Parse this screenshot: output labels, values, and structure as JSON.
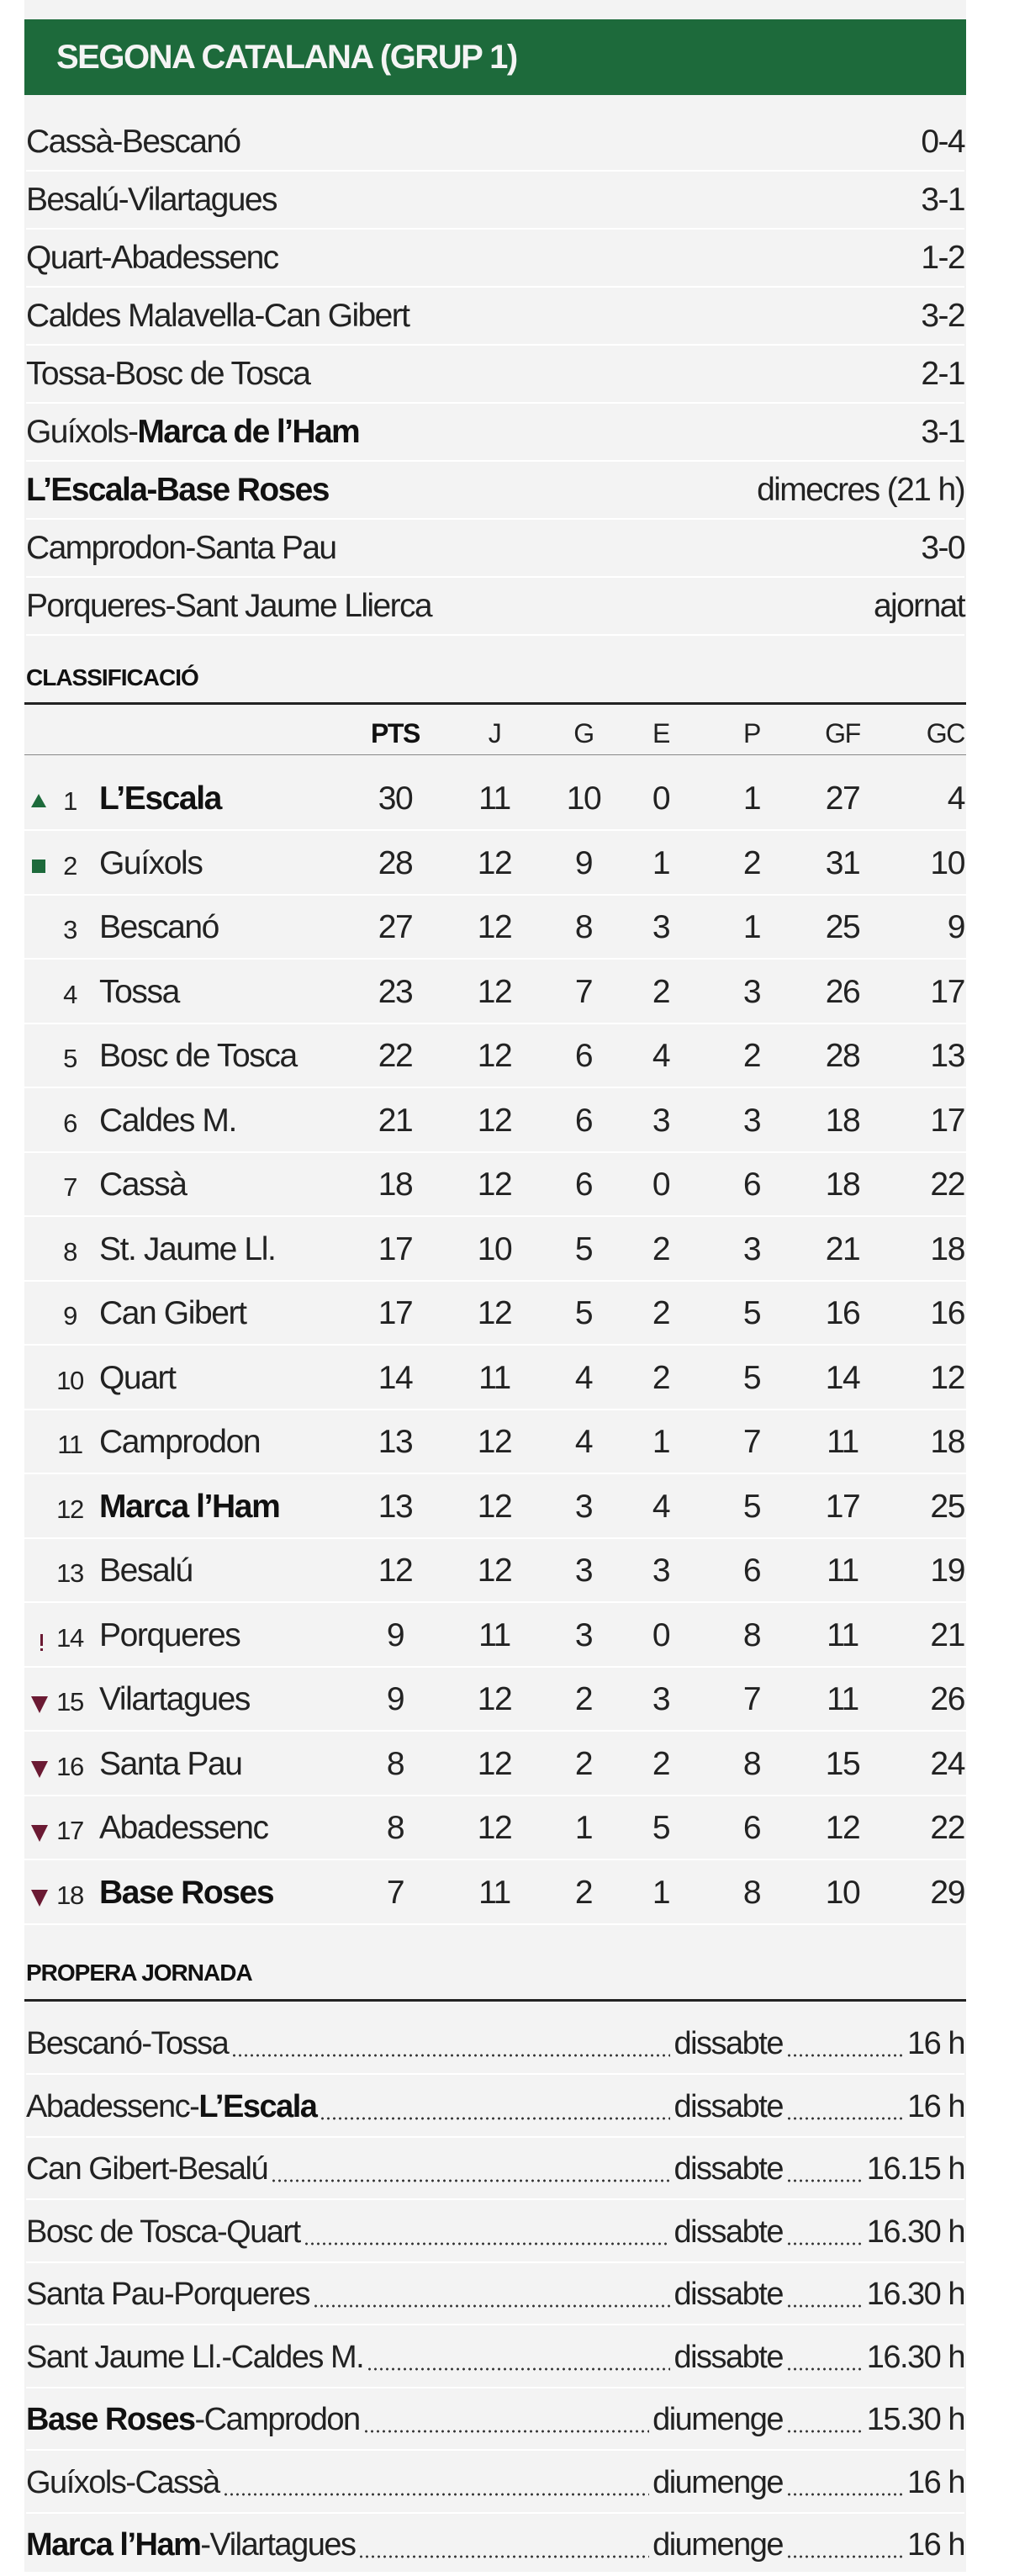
{
  "title": "SEGONA CATALANA (GRUP 1)",
  "results": [
    {
      "parts": [
        {
          "text": "Cassà-Bescanó",
          "bold": false
        }
      ],
      "score": "0-4"
    },
    {
      "parts": [
        {
          "text": "Besalú-Vilartagues",
          "bold": false
        }
      ],
      "score": "3-1"
    },
    {
      "parts": [
        {
          "text": "Quart-Abadessenc",
          "bold": false
        }
      ],
      "score": "1-2"
    },
    {
      "parts": [
        {
          "text": "Caldes Malavella-Can Gibert",
          "bold": false
        }
      ],
      "score": "3-2"
    },
    {
      "parts": [
        {
          "text": "Tossa-Bosc de Tosca",
          "bold": false
        }
      ],
      "score": "2-1"
    },
    {
      "parts": [
        {
          "text": "Guíxols-",
          "bold": false
        },
        {
          "text": "Marca de l’Ham",
          "bold": true
        }
      ],
      "score": "3-1"
    },
    {
      "parts": [
        {
          "text": "L’Escala-Base Roses",
          "bold": true
        }
      ],
      "score": "dimecres (21 h)"
    },
    {
      "parts": [
        {
          "text": "Camprodon-Santa Pau",
          "bold": false
        }
      ],
      "score": "3-0"
    },
    {
      "parts": [
        {
          "text": "Porqueres-Sant Jaume Llierca",
          "bold": false
        }
      ],
      "score": "ajornat"
    }
  ],
  "standings_title": "CLASSIFICACIÓ",
  "columns": [
    "PTS",
    "J",
    "G",
    "E",
    "P",
    "GF",
    "GC"
  ],
  "colors": {
    "header": "#1d6a3b",
    "promotion": "#1d6a3b",
    "relegation": "#6b1a33"
  },
  "standings": [
    {
      "pos": "1",
      "marker": "up-triangle",
      "team": "L’Escala",
      "bold": true,
      "stats": [
        "30",
        "11",
        "10",
        "0",
        "1",
        "27",
        "4"
      ]
    },
    {
      "pos": "2",
      "marker": "square",
      "team": "Guíxols",
      "bold": false,
      "stats": [
        "28",
        "12",
        "9",
        "1",
        "2",
        "31",
        "10"
      ]
    },
    {
      "pos": "3",
      "marker": "",
      "team": "Bescanó",
      "bold": false,
      "stats": [
        "27",
        "12",
        "8",
        "3",
        "1",
        "25",
        "9"
      ]
    },
    {
      "pos": "4",
      "marker": "",
      "team": "Tossa",
      "bold": false,
      "stats": [
        "23",
        "12",
        "7",
        "2",
        "3",
        "26",
        "17"
      ]
    },
    {
      "pos": "5",
      "marker": "",
      "team": "Bosc de Tosca",
      "bold": false,
      "stats": [
        "22",
        "12",
        "6",
        "4",
        "2",
        "28",
        "13"
      ]
    },
    {
      "pos": "6",
      "marker": "",
      "team": "Caldes M.",
      "bold": false,
      "stats": [
        "21",
        "12",
        "6",
        "3",
        "3",
        "18",
        "17"
      ]
    },
    {
      "pos": "7",
      "marker": "",
      "team": "Cassà",
      "bold": false,
      "stats": [
        "18",
        "12",
        "6",
        "0",
        "6",
        "18",
        "22"
      ]
    },
    {
      "pos": "8",
      "marker": "",
      "team": "St. Jaume Ll.",
      "bold": false,
      "stats": [
        "17",
        "10",
        "5",
        "2",
        "3",
        "21",
        "18"
      ]
    },
    {
      "pos": "9",
      "marker": "",
      "team": "Can Gibert",
      "bold": false,
      "stats": [
        "17",
        "12",
        "5",
        "2",
        "5",
        "16",
        "16"
      ]
    },
    {
      "pos": "10",
      "marker": "",
      "team": "Quart",
      "bold": false,
      "stats": [
        "14",
        "11",
        "4",
        "2",
        "5",
        "14",
        "12"
      ]
    },
    {
      "pos": "11",
      "marker": "",
      "team": "Camprodon",
      "bold": false,
      "stats": [
        "13",
        "12",
        "4",
        "1",
        "7",
        "11",
        "18"
      ]
    },
    {
      "pos": "12",
      "marker": "",
      "team": "Marca l’Ham",
      "bold": true,
      "stats": [
        "13",
        "12",
        "3",
        "4",
        "5",
        "17",
        "25"
      ]
    },
    {
      "pos": "13",
      "marker": "",
      "team": "Besalú",
      "bold": false,
      "stats": [
        "12",
        "12",
        "3",
        "3",
        "6",
        "11",
        "19"
      ]
    },
    {
      "pos": "14",
      "marker": "exclamation",
      "team": "Porqueres",
      "bold": false,
      "stats": [
        "9",
        "11",
        "3",
        "0",
        "8",
        "11",
        "21"
      ]
    },
    {
      "pos": "15",
      "marker": "down-triangle",
      "team": "Vilartagues",
      "bold": false,
      "stats": [
        "9",
        "12",
        "2",
        "3",
        "7",
        "11",
        "26"
      ]
    },
    {
      "pos": "16",
      "marker": "down-triangle",
      "team": "Santa Pau",
      "bold": false,
      "stats": [
        "8",
        "12",
        "2",
        "2",
        "8",
        "15",
        "24"
      ]
    },
    {
      "pos": "17",
      "marker": "down-triangle",
      "team": "Abadessenc",
      "bold": false,
      "stats": [
        "8",
        "12",
        "1",
        "5",
        "6",
        "12",
        "22"
      ]
    },
    {
      "pos": "18",
      "marker": "down-triangle",
      "team": "Base Roses",
      "bold": true,
      "stats": [
        "7",
        "11",
        "2",
        "1",
        "8",
        "10",
        "29"
      ]
    }
  ],
  "next_title": "PROPERA JORNADA",
  "fixtures": [
    {
      "parts": [
        {
          "text": "Bescanó-Tossa",
          "bold": false
        }
      ],
      "day": "dissabte",
      "time": "16 h"
    },
    {
      "parts": [
        {
          "text": "Abadessenc-",
          "bold": false
        },
        {
          "text": "L’Escala",
          "bold": true
        }
      ],
      "day": "dissabte",
      "time": "16 h"
    },
    {
      "parts": [
        {
          "text": "Can Gibert-Besalú",
          "bold": false
        }
      ],
      "day": "dissabte",
      "time": "16.15 h"
    },
    {
      "parts": [
        {
          "text": "Bosc de Tosca-Quart",
          "bold": false
        }
      ],
      "day": "dissabte",
      "time": "16.30 h"
    },
    {
      "parts": [
        {
          "text": "Santa Pau-Porqueres",
          "bold": false
        }
      ],
      "day": "dissabte",
      "time": "16.30 h"
    },
    {
      "parts": [
        {
          "text": "Sant Jaume Ll.-Caldes M.",
          "bold": false
        }
      ],
      "day": "dissabte",
      "time": "16.30 h"
    },
    {
      "parts": [
        {
          "text": "Base Roses",
          "bold": true
        },
        {
          "text": "-Camprodon",
          "bold": false
        }
      ],
      "day": "diumenge",
      "time": "15.30 h"
    },
    {
      "parts": [
        {
          "text": "Guíxols-Cassà",
          "bold": false
        }
      ],
      "day": "diumenge",
      "time": "16 h"
    },
    {
      "parts": [
        {
          "text": "Marca l’Ham",
          "bold": true
        },
        {
          "text": "-Vilartagues",
          "bold": false
        }
      ],
      "day": "diumenge",
      "time": "16 h"
    }
  ]
}
